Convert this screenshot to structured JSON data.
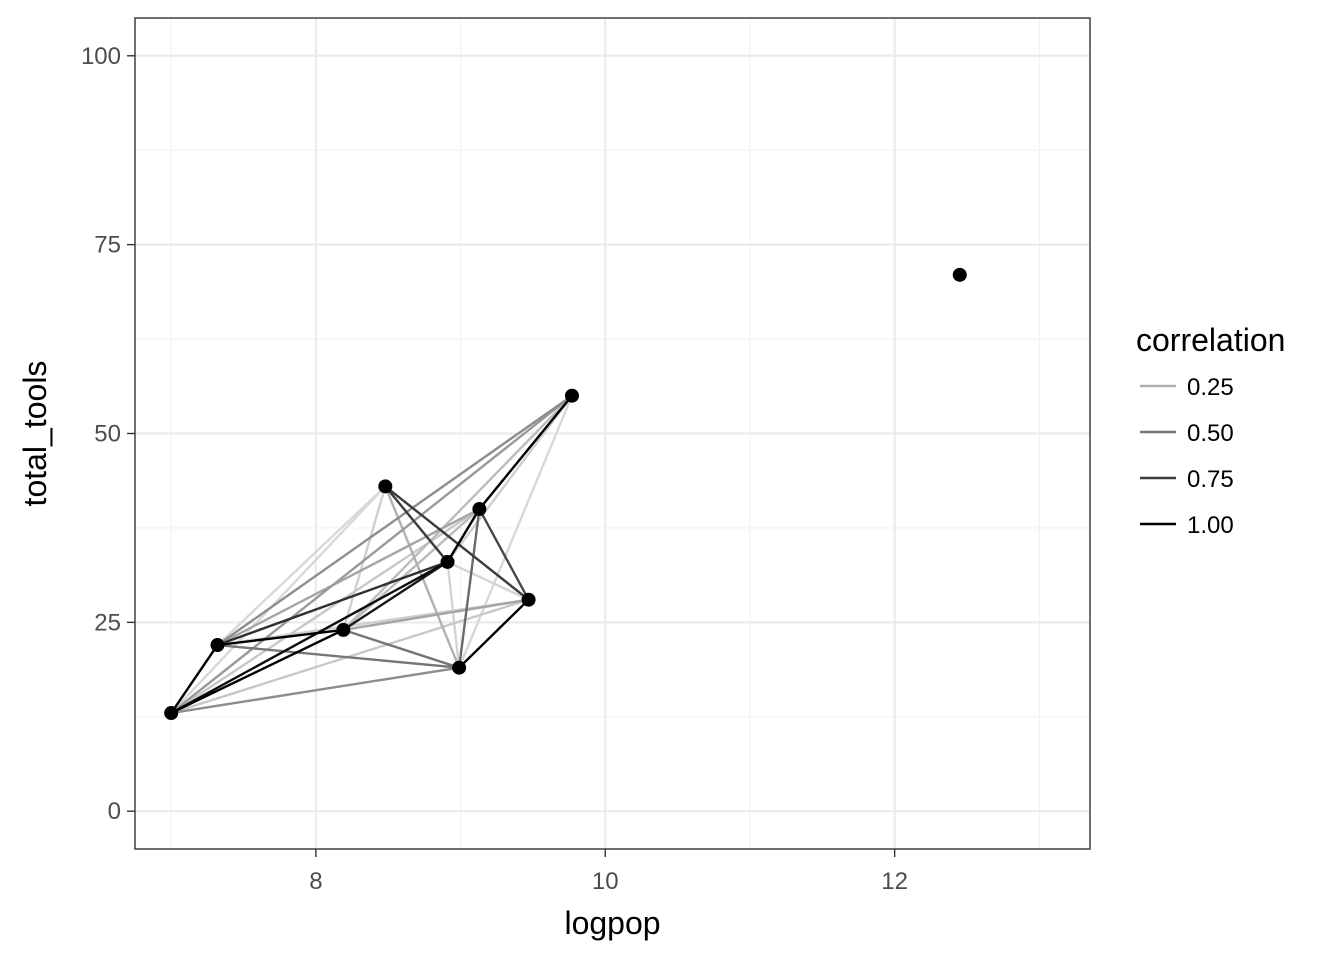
{
  "chart_data": {
    "type": "scatter",
    "xlabel": "logpop",
    "ylabel": "total_tools",
    "xlim": [
      6.75,
      13.35
    ],
    "ylim": [
      -5,
      105
    ],
    "x_ticks": [
      8,
      10,
      12
    ],
    "y_ticks": [
      0,
      25,
      50,
      75,
      100
    ],
    "grid": true,
    "points": [
      {
        "x": 7.0,
        "y": 13
      },
      {
        "x": 7.32,
        "y": 22
      },
      {
        "x": 8.19,
        "y": 24
      },
      {
        "x": 8.48,
        "y": 43
      },
      {
        "x": 8.91,
        "y": 33
      },
      {
        "x": 8.99,
        "y": 19
      },
      {
        "x": 9.13,
        "y": 40
      },
      {
        "x": 9.47,
        "y": 28
      },
      {
        "x": 9.77,
        "y": 55
      },
      {
        "x": 12.45,
        "y": 71
      }
    ],
    "edges": [
      {
        "from": 0,
        "to": 1,
        "correlation": 1.0
      },
      {
        "from": 1,
        "to": 2,
        "correlation": 1.0
      },
      {
        "from": 0,
        "to": 2,
        "correlation": 1.0
      },
      {
        "from": 0,
        "to": 4,
        "correlation": 0.95
      },
      {
        "from": 1,
        "to": 4,
        "correlation": 0.8
      },
      {
        "from": 2,
        "to": 4,
        "correlation": 0.9
      },
      {
        "from": 4,
        "to": 6,
        "correlation": 1.0
      },
      {
        "from": 6,
        "to": 8,
        "correlation": 1.0
      },
      {
        "from": 7,
        "to": 5,
        "correlation": 1.0
      },
      {
        "from": 3,
        "to": 7,
        "correlation": 0.75
      },
      {
        "from": 3,
        "to": 4,
        "correlation": 0.75
      },
      {
        "from": 6,
        "to": 7,
        "correlation": 0.7
      },
      {
        "from": 5,
        "to": 6,
        "correlation": 0.55
      },
      {
        "from": 1,
        "to": 5,
        "correlation": 0.5
      },
      {
        "from": 2,
        "to": 5,
        "correlation": 0.5
      },
      {
        "from": 1,
        "to": 8,
        "correlation": 0.4
      },
      {
        "from": 0,
        "to": 5,
        "correlation": 0.4
      },
      {
        "from": 0,
        "to": 8,
        "correlation": 0.35
      },
      {
        "from": 1,
        "to": 6,
        "correlation": 0.3
      },
      {
        "from": 2,
        "to": 7,
        "correlation": 0.3
      },
      {
        "from": 3,
        "to": 5,
        "correlation": 0.25
      },
      {
        "from": 2,
        "to": 6,
        "correlation": 0.2
      },
      {
        "from": 2,
        "to": 8,
        "correlation": 0.2
      },
      {
        "from": 0,
        "to": 6,
        "correlation": 0.15
      },
      {
        "from": 0,
        "to": 7,
        "correlation": 0.15
      },
      {
        "from": 1,
        "to": 7,
        "correlation": 0.12
      },
      {
        "from": 4,
        "to": 8,
        "correlation": 0.12
      },
      {
        "from": 2,
        "to": 3,
        "correlation": 0.12
      },
      {
        "from": 5,
        "to": 8,
        "correlation": 0.08
      },
      {
        "from": 0,
        "to": 3,
        "correlation": 0.08
      },
      {
        "from": 1,
        "to": 3,
        "correlation": 0.08
      },
      {
        "from": 4,
        "to": 7,
        "correlation": 0.1
      },
      {
        "from": 5,
        "to": 4,
        "correlation": 0.1
      }
    ],
    "legend": {
      "title": "correlation",
      "position": "right",
      "entries": [
        {
          "label": "0.25",
          "value": 0.25
        },
        {
          "label": "0.50",
          "value": 0.5
        },
        {
          "label": "0.75",
          "value": 0.75
        },
        {
          "label": "1.00",
          "value": 1.0
        }
      ]
    },
    "colors": {
      "panel_border": "#333333",
      "grid_major": "#ebebeb",
      "grid_minor": "#f2f2f2",
      "point": "#000000"
    }
  }
}
